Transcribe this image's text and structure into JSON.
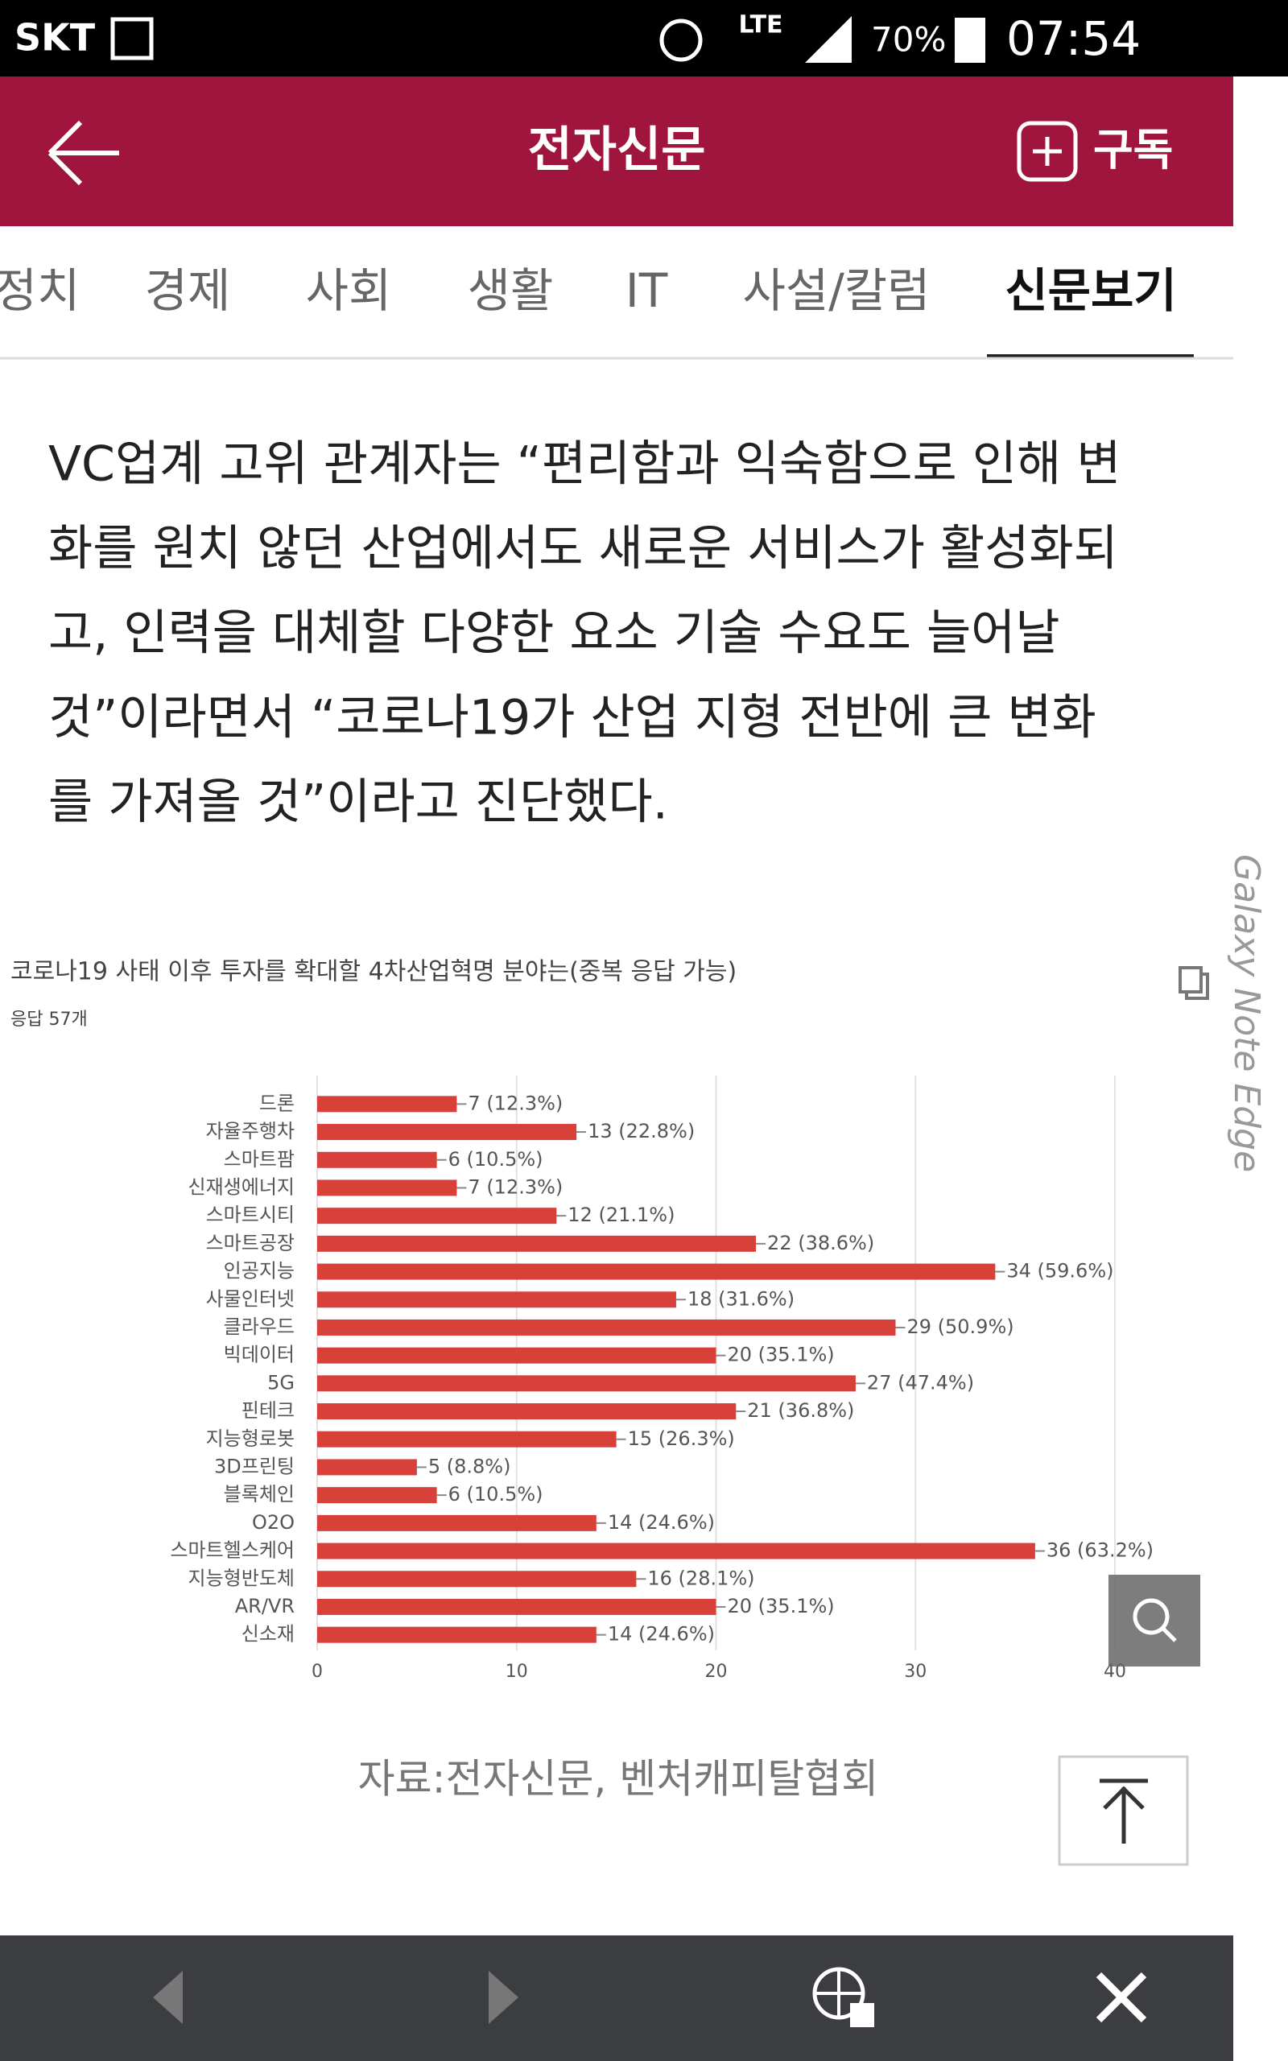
{
  "status_bar": {
    "carrier": "SKT",
    "network": "LTE",
    "battery": "70%",
    "time": "07:54"
  },
  "header": {
    "title": "전자신문",
    "subscribe": "구독"
  },
  "tabs": [
    {
      "label": "정치",
      "active": false
    },
    {
      "label": "경제",
      "active": false
    },
    {
      "label": "사회",
      "active": false
    },
    {
      "label": "생활",
      "active": false
    },
    {
      "label": "IT",
      "active": false
    },
    {
      "label": "사설/칼럼",
      "active": false
    },
    {
      "label": "신문보기",
      "active": true
    }
  ],
  "article": {
    "lines": [
      "VC업계 고위 관계자는 “편리함과 익숙함으로 인해 변",
      "화를 원치 않던 산업에서도 새로운 서비스가 활성화되",
      "고, 인력을 대체할 다양한 요소 기술 수요도 늘어날",
      "것”이라면서 “코로나19가 산업 지형 전반에 큰 변화",
      "를 가져올 것”이라고 진단했다."
    ]
  },
  "chart_data": {
    "type": "bar",
    "orientation": "horizontal",
    "title": "코로나19 사태 이후 투자를 확대할 4차산업혁명 분야는(중복 응답 가능)",
    "subtitle": "응답 57개",
    "categories": [
      "드론",
      "자율주행차",
      "스마트팜",
      "신재생에너지",
      "스마트시티",
      "스마트공장",
      "인공지능",
      "사물인터넷",
      "클라우드",
      "빅데이터",
      "5G",
      "핀테크",
      "지능형로봇",
      "3D프린팅",
      "블록체인",
      "O2O",
      "스마트헬스케어",
      "지능형반도체",
      "AR/VR",
      "신소재"
    ],
    "values": [
      7,
      13,
      6,
      7,
      12,
      22,
      34,
      18,
      29,
      20,
      27,
      21,
      15,
      5,
      6,
      14,
      36,
      16,
      20,
      14
    ],
    "value_labels": [
      "7 (12.3%)",
      "13 (22.8%)",
      "6 (10.5%)",
      "7 (12.3%)",
      "12 (21.1%)",
      "22 (38.6%)",
      "34 (59.6%)",
      "18 (31.6%)",
      "29 (50.9%)",
      "20 (35.1%)",
      "27 (47.4%)",
      "21 (36.8%)",
      "15 (26.3%)",
      "5 (8.8%)",
      "6 (10.5%)",
      "14 (24.6%)",
      "36 (63.2%)",
      "16 (28.1%)",
      "20 (35.1%)",
      "14 (24.6%)"
    ],
    "color": "#d8403a",
    "xlim": [
      0,
      40
    ],
    "xticks": [
      0,
      10,
      20,
      30,
      40
    ],
    "grid": true
  },
  "caption": "자료:전자신문, 벤처캐피탈협회",
  "device_label": "Galaxy Note Edge"
}
